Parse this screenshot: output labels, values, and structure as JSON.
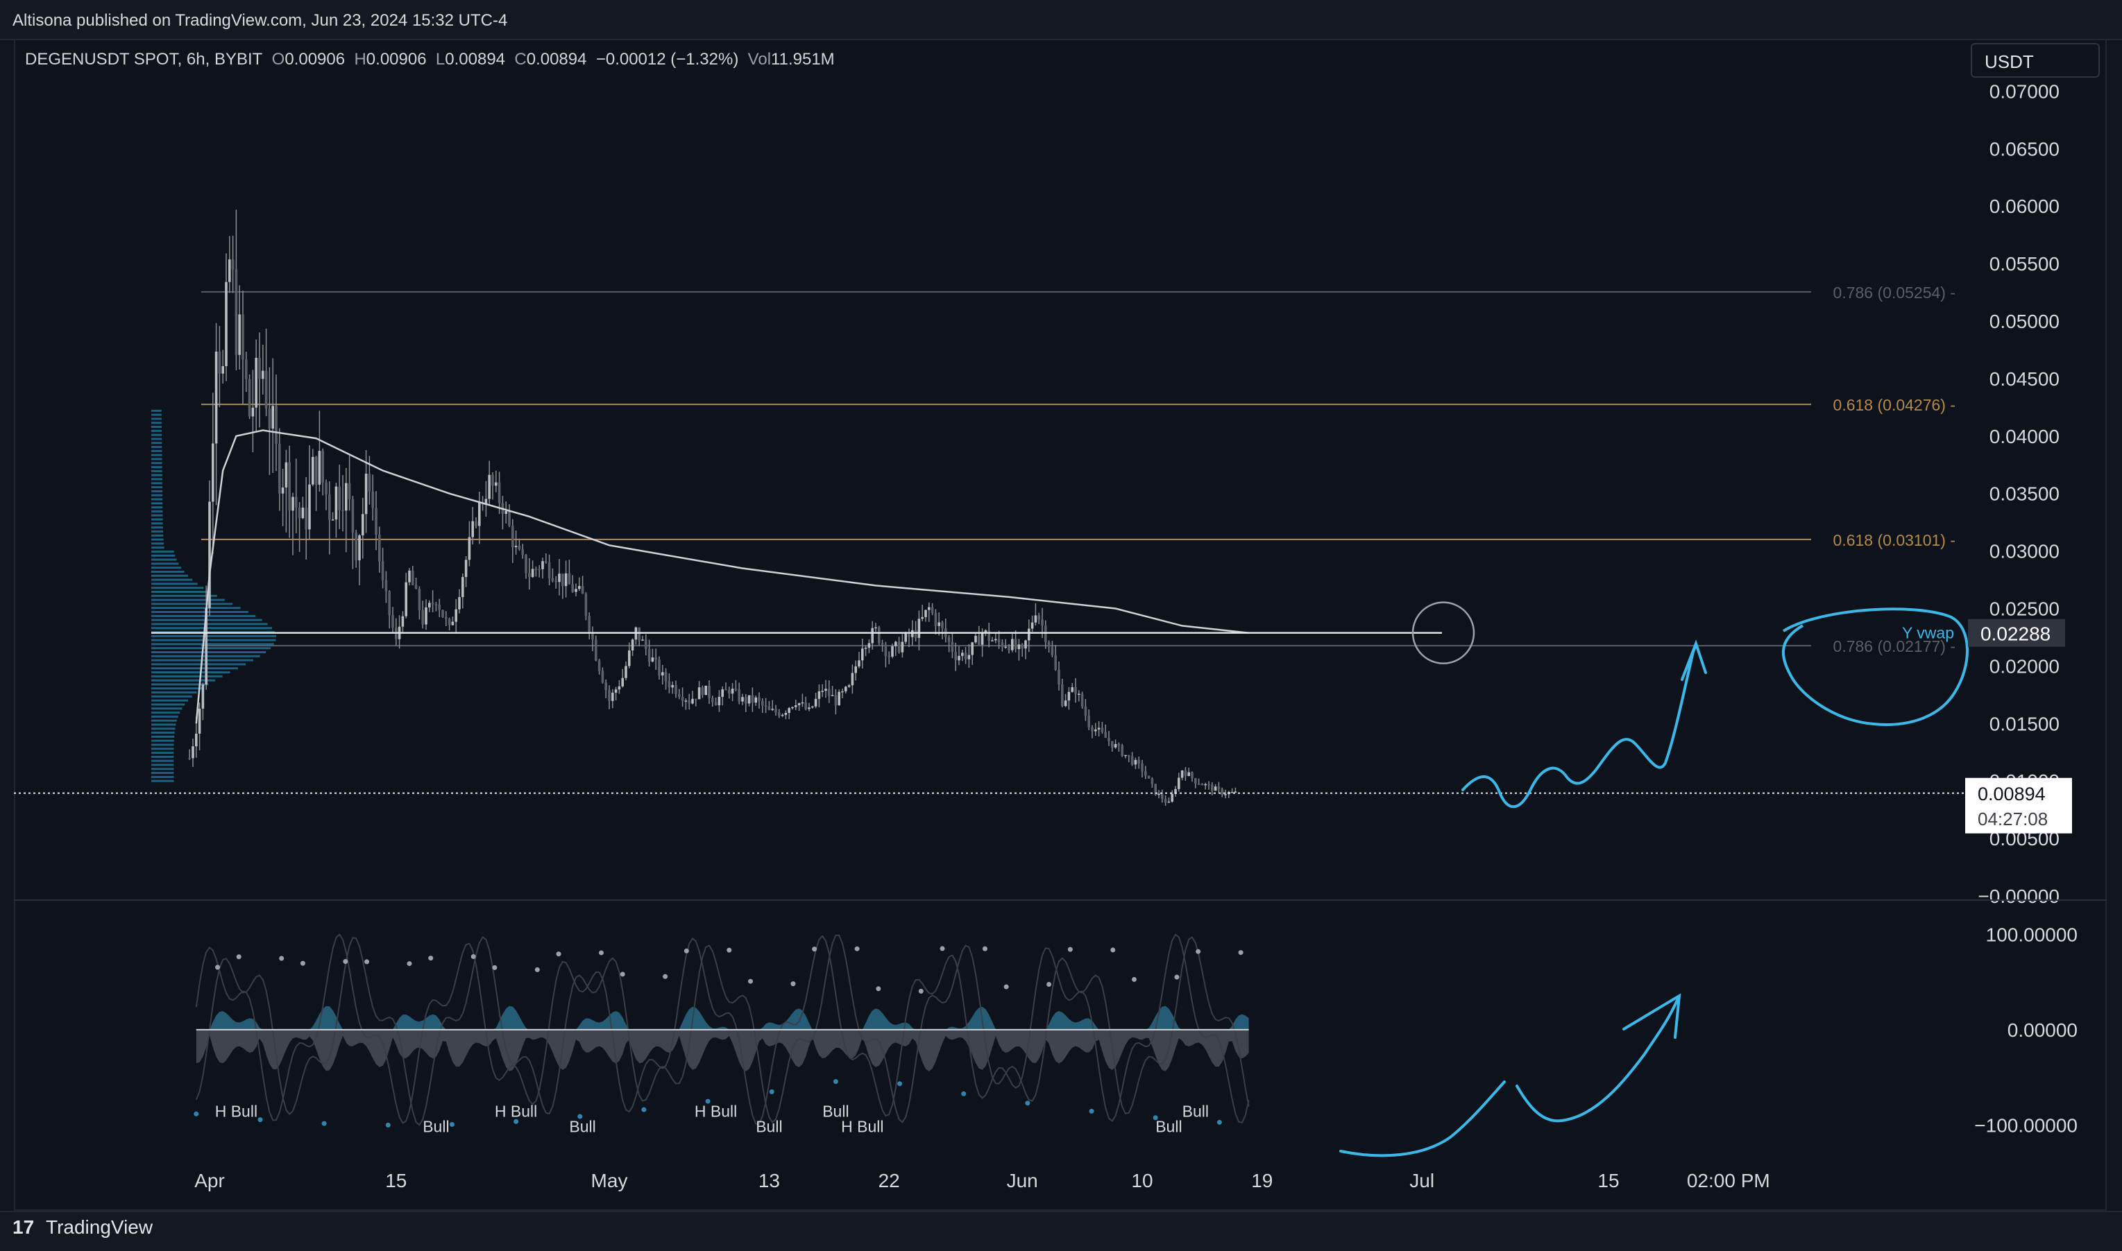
{
  "header": {
    "published": "Altisona published on TradingView.com, Jun 23, 2024 15:32 UTC-4"
  },
  "legend": {
    "symbol": "DEGENUSDT SPOT, 6h, BYBIT",
    "open_label": "O",
    "open": "0.00906",
    "high_label": "H",
    "high": "0.00906",
    "low_label": "L",
    "low": "0.00894",
    "close_label": "C",
    "close": "0.00894",
    "change": "−0.00012 (−1.32%)",
    "vol_label": "Vol",
    "vol": "11.951M"
  },
  "currency_button": "USDT",
  "footer": {
    "logo": "17",
    "brand": "TradingView"
  },
  "colors": {
    "background": "#0e121b",
    "candle": "#8a8d94",
    "vwap": "#cfd2d8",
    "fib_786": "#5a5e68",
    "fib_618": "#b58a4a",
    "annotation": "#3bb8e8",
    "volume_profile": "#1e6f94"
  },
  "chart_data": [
    {
      "type": "candlestick",
      "title": "DEGENUSDT SPOT, 6h, BYBIT",
      "ylim": [
        0.0,
        0.0725
      ],
      "y_ticks": [
        "0.07000",
        "0.06500",
        "0.06000",
        "0.05500",
        "0.05000",
        "0.04500",
        "0.04000",
        "0.03500",
        "0.03000",
        "0.02500",
        "0.02000",
        "0.01500",
        "0.01000",
        "0.00500",
        "−0.00000"
      ],
      "y_tick_values": [
        0.07,
        0.065,
        0.06,
        0.055,
        0.05,
        0.045,
        0.04,
        0.035,
        0.03,
        0.025,
        0.02,
        0.015,
        0.01,
        0.005,
        0.0
      ],
      "x_ticks": [
        "Apr",
        "15",
        "May",
        "13",
        "22",
        "Jun",
        "10",
        "19",
        "Jul",
        "15",
        "02:00 PM"
      ],
      "x_tick_days": [
        0,
        14,
        30,
        42,
        51,
        61,
        70,
        79,
        91,
        105,
        114
      ],
      "x_unit": "days since Apr 1",
      "close_path": [
        {
          "d": -1.5,
          "p": 0.012
        },
        {
          "d": -0.5,
          "p": 0.018
        },
        {
          "d": 0.5,
          "p": 0.05
        },
        {
          "d": 1,
          "p": 0.045
        },
        {
          "d": 1.5,
          "p": 0.055
        },
        {
          "d": 2,
          "p": 0.05
        },
        {
          "d": 3,
          "p": 0.042
        },
        {
          "d": 4,
          "p": 0.046
        },
        {
          "d": 5,
          "p": 0.038
        },
        {
          "d": 6,
          "p": 0.036
        },
        {
          "d": 7,
          "p": 0.032
        },
        {
          "d": 8,
          "p": 0.038
        },
        {
          "d": 9,
          "p": 0.034
        },
        {
          "d": 10,
          "p": 0.036
        },
        {
          "d": 11,
          "p": 0.031
        },
        {
          "d": 12,
          "p": 0.036
        },
        {
          "d": 13,
          "p": 0.027
        },
        {
          "d": 14,
          "p": 0.022
        },
        {
          "d": 15,
          "p": 0.028
        },
        {
          "d": 16,
          "p": 0.024
        },
        {
          "d": 17,
          "p": 0.026
        },
        {
          "d": 18,
          "p": 0.023
        },
        {
          "d": 19,
          "p": 0.028
        },
        {
          "d": 20,
          "p": 0.033
        },
        {
          "d": 21,
          "p": 0.036
        },
        {
          "d": 22,
          "p": 0.034
        },
        {
          "d": 23,
          "p": 0.03
        },
        {
          "d": 24,
          "p": 0.028
        },
        {
          "d": 25,
          "p": 0.029
        },
        {
          "d": 26,
          "p": 0.028
        },
        {
          "d": 27,
          "p": 0.027
        },
        {
          "d": 28,
          "p": 0.026
        },
        {
          "d": 29,
          "p": 0.021
        },
        {
          "d": 30,
          "p": 0.017
        },
        {
          "d": 31,
          "p": 0.019
        },
        {
          "d": 32,
          "p": 0.023
        },
        {
          "d": 33,
          "p": 0.021
        },
        {
          "d": 34,
          "p": 0.019
        },
        {
          "d": 35,
          "p": 0.018
        },
        {
          "d": 36,
          "p": 0.017
        },
        {
          "d": 37,
          "p": 0.018
        },
        {
          "d": 38,
          "p": 0.017
        },
        {
          "d": 39,
          "p": 0.018
        },
        {
          "d": 40,
          "p": 0.017
        },
        {
          "d": 41,
          "p": 0.017
        },
        {
          "d": 42,
          "p": 0.016
        },
        {
          "d": 43,
          "p": 0.016
        },
        {
          "d": 44,
          "p": 0.017
        },
        {
          "d": 45,
          "p": 0.016
        },
        {
          "d": 46,
          "p": 0.018
        },
        {
          "d": 47,
          "p": 0.017
        },
        {
          "d": 48,
          "p": 0.018
        },
        {
          "d": 49,
          "p": 0.022
        },
        {
          "d": 50,
          "p": 0.023
        },
        {
          "d": 51,
          "p": 0.021
        },
        {
          "d": 52,
          "p": 0.022
        },
        {
          "d": 53,
          "p": 0.023
        },
        {
          "d": 54,
          "p": 0.025
        },
        {
          "d": 55,
          "p": 0.023
        },
        {
          "d": 56,
          "p": 0.021
        },
        {
          "d": 57,
          "p": 0.021
        },
        {
          "d": 58,
          "p": 0.023
        },
        {
          "d": 59,
          "p": 0.022
        },
        {
          "d": 60,
          "p": 0.022
        },
        {
          "d": 61,
          "p": 0.021
        },
        {
          "d": 62,
          "p": 0.025
        },
        {
          "d": 63,
          "p": 0.022
        },
        {
          "d": 64,
          "p": 0.017
        },
        {
          "d": 65,
          "p": 0.018
        },
        {
          "d": 66,
          "p": 0.015
        },
        {
          "d": 67,
          "p": 0.014
        },
        {
          "d": 68,
          "p": 0.013
        },
        {
          "d": 69,
          "p": 0.012
        },
        {
          "d": 70,
          "p": 0.011
        },
        {
          "d": 71,
          "p": 0.009
        },
        {
          "d": 72,
          "p": 0.008
        },
        {
          "d": 73,
          "p": 0.011
        },
        {
          "d": 74,
          "p": 0.01
        },
        {
          "d": 75,
          "p": 0.0095
        },
        {
          "d": 76,
          "p": 0.009
        },
        {
          "d": 77,
          "p": 0.00894
        }
      ],
      "vwap_path": [
        {
          "d": -1,
          "p": 0.015
        },
        {
          "d": 0,
          "p": 0.028
        },
        {
          "d": 1,
          "p": 0.037
        },
        {
          "d": 2,
          "p": 0.04
        },
        {
          "d": 4,
          "p": 0.0405
        },
        {
          "d": 8,
          "p": 0.0398
        },
        {
          "d": 13,
          "p": 0.037
        },
        {
          "d": 18,
          "p": 0.035
        },
        {
          "d": 24,
          "p": 0.033
        },
        {
          "d": 30,
          "p": 0.0305
        },
        {
          "d": 40,
          "p": 0.0285
        },
        {
          "d": 50,
          "p": 0.027
        },
        {
          "d": 60,
          "p": 0.026
        },
        {
          "d": 68,
          "p": 0.025
        },
        {
          "d": 73,
          "p": 0.0235
        },
        {
          "d": 78,
          "p": 0.02288
        }
      ],
      "fib_levels": [
        {
          "label": "0.786 (0.05254)",
          "value": 0.05254,
          "kind": "786"
        },
        {
          "label": "0.618 (0.04276)",
          "value": 0.04276,
          "kind": "618"
        },
        {
          "label": "0.618 (0.03101)",
          "value": 0.03101,
          "kind": "618"
        },
        {
          "label": "0.786 (0.02177)",
          "value": 0.02177,
          "kind": "786"
        }
      ],
      "vwap_label": "Y vwap",
      "vwap_value": "0.02288",
      "last_price": "0.00894",
      "countdown": "04:27:08",
      "volume_profile_peak": 0.0225
    },
    {
      "type": "oscillator",
      "ylim": [
        -120,
        130
      ],
      "y_ticks": [
        "100.00000",
        "0.00000",
        "−100.00000"
      ],
      "y_tick_values": [
        100,
        0,
        -100
      ],
      "divergence_labels": [
        {
          "text": "H Bull",
          "d": 2
        },
        {
          "text": "Bull",
          "d": 17
        },
        {
          "text": "H Bull",
          "d": 23
        },
        {
          "text": "Bull",
          "d": 28
        },
        {
          "text": "H Bull",
          "d": 38
        },
        {
          "text": "Bull",
          "d": 42
        },
        {
          "text": "Bull",
          "d": 47
        },
        {
          "text": "H Bull",
          "d": 49
        },
        {
          "text": "Bull",
          "d": 74
        },
        {
          "text": "Bull",
          "d": 72
        }
      ]
    }
  ]
}
